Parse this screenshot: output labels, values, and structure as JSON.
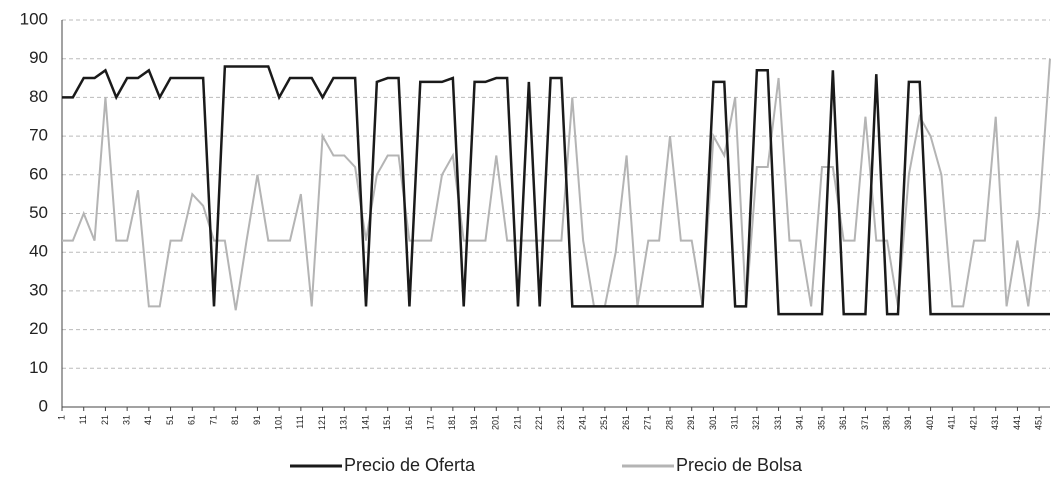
{
  "chart_data": {
    "type": "line",
    "x": [
      1,
      6,
      11,
      16,
      21,
      26,
      31,
      36,
      41,
      46,
      51,
      56,
      61,
      66,
      71,
      76,
      81,
      86,
      91,
      96,
      101,
      106,
      111,
      116,
      121,
      126,
      131,
      136,
      141,
      146,
      151,
      156,
      161,
      166,
      171,
      176,
      181,
      186,
      191,
      196,
      201,
      206,
      211,
      216,
      221,
      226,
      231,
      236,
      241,
      246,
      251,
      256,
      261,
      266,
      271,
      276,
      281,
      286,
      291,
      296,
      301,
      306,
      311,
      316,
      321,
      326,
      331,
      336,
      341,
      346,
      351,
      356,
      361,
      366,
      371,
      376,
      381,
      386,
      391,
      396,
      401,
      406,
      411,
      416,
      421,
      426,
      431,
      436,
      441,
      446,
      451,
      456
    ],
    "series": [
      {
        "name": "Precio de Oferta",
        "color": "#1a1a1a",
        "values": [
          80,
          80,
          85,
          85,
          87,
          80,
          85,
          85,
          87,
          80,
          85,
          85,
          85,
          85,
          26,
          88,
          88,
          88,
          88,
          88,
          80,
          85,
          85,
          85,
          80,
          85,
          85,
          85,
          26,
          84,
          85,
          85,
          26,
          84,
          84,
          84,
          85,
          26,
          84,
          84,
          85,
          85,
          26,
          84,
          26,
          85,
          85,
          26,
          26,
          26,
          26,
          26,
          26,
          26,
          26,
          26,
          26,
          26,
          26,
          26,
          84,
          84,
          26,
          26,
          87,
          87,
          24,
          24,
          24,
          24,
          24,
          87,
          24,
          24,
          24,
          86,
          24,
          24,
          84,
          84,
          24,
          24,
          24,
          24,
          24,
          24,
          24,
          24,
          24,
          24,
          24,
          24
        ]
      },
      {
        "name": "Precio de Bolsa",
        "color": "#b4b4b4",
        "values": [
          43,
          43,
          50,
          43,
          80,
          43,
          43,
          56,
          26,
          26,
          43,
          43,
          55,
          52,
          43,
          43,
          25,
          43,
          60,
          43,
          43,
          43,
          55,
          26,
          70,
          65,
          65,
          62,
          43,
          60,
          65,
          65,
          43,
          43,
          43,
          60,
          65,
          43,
          43,
          43,
          65,
          43,
          43,
          43,
          43,
          43,
          43,
          80,
          43,
          26,
          26,
          40,
          65,
          26,
          43,
          43,
          70,
          43,
          43,
          26,
          70,
          65,
          80,
          26,
          62,
          62,
          85,
          43,
          43,
          26,
          62,
          62,
          43,
          43,
          75,
          43,
          43,
          26,
          60,
          75,
          70,
          60,
          26,
          26,
          43,
          43,
          75,
          26,
          43,
          26,
          50,
          90
        ]
      }
    ],
    "xlim": [
      1,
      456
    ],
    "ylim": [
      0,
      100
    ],
    "xticks": [
      1,
      11,
      21,
      31,
      41,
      51,
      61,
      71,
      81,
      91,
      101,
      111,
      121,
      131,
      141,
      151,
      161,
      171,
      181,
      191,
      201,
      211,
      221,
      231,
      241,
      251,
      261,
      271,
      281,
      291,
      301,
      311,
      321,
      331,
      341,
      351,
      361,
      371,
      381,
      391,
      401,
      411,
      421,
      431,
      441,
      451
    ],
    "yticks": [
      0,
      10,
      20,
      30,
      40,
      50,
      60,
      70,
      80,
      90,
      100
    ],
    "grid": true
  }
}
